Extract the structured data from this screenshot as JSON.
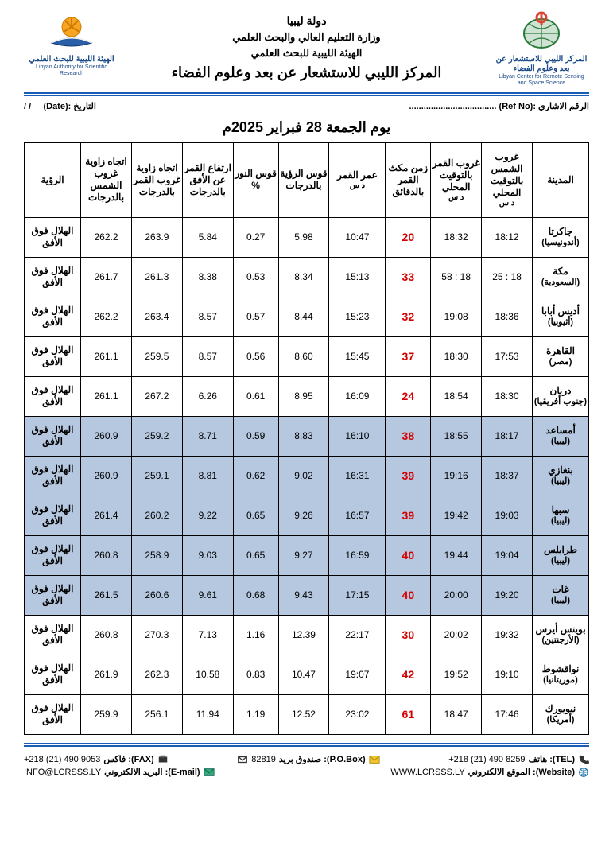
{
  "header": {
    "country": "دولة ليبيا",
    "ministry": "وزارة التعليم العالي والبحث العلمي",
    "authority": "الهيئة الليبية للبحث العلمي",
    "center": "المركز الليبي للاستشعار عن بعد وعلوم الفضاء",
    "logo_right_ar": "المركز الليبي للاستشعار عن بعد وعلوم الفضاء",
    "logo_right_en": "Libyan Center for Remote Sensing and Space Science",
    "logo_left_ar": "الهيئة الليبية للبحث العلمي",
    "logo_left_en": "Libyan Authority for Scientific Research"
  },
  "meta": {
    "ref_label": "الرقم الاشاري :(Ref No)",
    "ref_dots": "....................................",
    "date_label": "التاريخ :(Date)",
    "date_val": "/        /"
  },
  "title": "يوم الجمعة 28 فبراير 2025م",
  "columns": {
    "city": "المدينة",
    "sunset": "غروب الشمس بالتوقيت المحلي",
    "sunset_sub": "د   س",
    "moonset": "غروب القمر بالتوقيت المحلي",
    "moonset_sub": "د   س",
    "stay": "زمن مكث القمر بالدقائق",
    "age": "عمر القمر",
    "age_sub": "د   س",
    "arc": "قوس الرؤية بالدرجات",
    "light": "قوس النور %",
    "alt": "ارتفاع القمر عن الأفق بالدرجات",
    "moon_az": "اتجاه زاوية غروب القمر بالدرجات",
    "sun_az": "اتجاه زاوية غروب الشمس بالدرجات",
    "vis": "الرؤية"
  },
  "vis_text": "الهلال فوق الأفق",
  "rows": [
    {
      "city": "جاكرتا",
      "country": "(أندونيسيا)",
      "sun": "18:12",
      "moon": "18:32",
      "stay": "20",
      "age": "10:47",
      "arc": "5.98",
      "light": "0.27",
      "alt": "5.84",
      "maz": "263.9",
      "saz": "262.2",
      "hl": false
    },
    {
      "city": "مكة",
      "country": "(السعودية)",
      "sun": "18 : 25",
      "moon": "18 : 58",
      "stay": "33",
      "age": "15:13",
      "arc": "8.34",
      "light": "0.53",
      "alt": "8.38",
      "maz": "261.3",
      "saz": "261.7",
      "hl": false
    },
    {
      "city": "أديس أبابا",
      "country": "(أثيوبيا)",
      "sun": "18:36",
      "moon": "19:08",
      "stay": "32",
      "age": "15:23",
      "arc": "8.44",
      "light": "0.57",
      "alt": "8.57",
      "maz": "263.4",
      "saz": "262.2",
      "hl": false
    },
    {
      "city": "القاهرة",
      "country": "(مصر)",
      "sun": "17:53",
      "moon": "18:30",
      "stay": "37",
      "age": "15:45",
      "arc": "8.60",
      "light": "0.56",
      "alt": "8.57",
      "maz": "259.5",
      "saz": "261.1",
      "hl": false
    },
    {
      "city": "دربان",
      "country": "(جنوب أفريقيا)",
      "sun": "18:30",
      "moon": "18:54",
      "stay": "24",
      "age": "16:09",
      "arc": "8.95",
      "light": "0.61",
      "alt": "6.26",
      "maz": "267.2",
      "saz": "261.1",
      "hl": false
    },
    {
      "city": "أمساعد",
      "country": "(ليبيا)",
      "sun": "18:17",
      "moon": "18:55",
      "stay": "38",
      "age": "16:10",
      "arc": "8.83",
      "light": "0.59",
      "alt": "8.71",
      "maz": "259.2",
      "saz": "260.9",
      "hl": true
    },
    {
      "city": "بنغازي",
      "country": "(ليبيا)",
      "sun": "18:37",
      "moon": "19:16",
      "stay": "39",
      "age": "16:31",
      "arc": "9.02",
      "light": "0.62",
      "alt": "8.81",
      "maz": "259.1",
      "saz": "260.9",
      "hl": true
    },
    {
      "city": "سبها",
      "country": "(ليبيا)",
      "sun": "19:03",
      "moon": "19:42",
      "stay": "39",
      "age": "16:57",
      "arc": "9.26",
      "light": "0.65",
      "alt": "9.22",
      "maz": "260.2",
      "saz": "261.4",
      "hl": true
    },
    {
      "city": "طرابلس",
      "country": "(ليبيا)",
      "sun": "19:04",
      "moon": "19:44",
      "stay": "40",
      "age": "16:59",
      "arc": "9.27",
      "light": "0.65",
      "alt": "9.03",
      "maz": "258.9",
      "saz": "260.8",
      "hl": true
    },
    {
      "city": "غات",
      "country": "(ليبيا)",
      "sun": "19:20",
      "moon": "20:00",
      "stay": "40",
      "age": "17:15",
      "arc": "9.43",
      "light": "0.68",
      "alt": "9.61",
      "maz": "260.6",
      "saz": "261.5",
      "hl": true
    },
    {
      "city": "بوينس أيرس",
      "country": "(الأرجنتين)",
      "sun": "19:32",
      "moon": "20:02",
      "stay": "30",
      "age": "22:17",
      "arc": "12.39",
      "light": "1.16",
      "alt": "7.13",
      "maz": "270.3",
      "saz": "260.8",
      "hl": false
    },
    {
      "city": "نواقشوط",
      "country": "(موريتانيا)",
      "sun": "19:10",
      "moon": "19:52",
      "stay": "42",
      "age": "19:07",
      "arc": "10.47",
      "light": "0.83",
      "alt": "10.58",
      "maz": "262.3",
      "saz": "261.9",
      "hl": false
    },
    {
      "city": "نيويورك",
      "country": "(أمريكا)",
      "sun": "17:46",
      "moon": "18:47",
      "stay": "61",
      "age": "23:02",
      "arc": "12.52",
      "light": "1.19",
      "alt": "11.94",
      "maz": "256.1",
      "saz": "259.9",
      "hl": false
    }
  ],
  "footer": {
    "tel_lbl": "هاتف :(TEL)",
    "tel": "+218 (21) 490 8259",
    "pobox_lbl": "صندوق بريد :(P.O.Box)",
    "pobox": "82819",
    "fax_lbl": "فاكس :(FAX)",
    "fax": "+218 (21) 490 9053",
    "web_lbl": "الموقع الالكتروني :(Website)",
    "web": "WWW.LCRSSS.LY",
    "mail_lbl": "البريد الالكتروني :(E-mail)",
    "mail": "INFO@LCRSSS.LY"
  }
}
